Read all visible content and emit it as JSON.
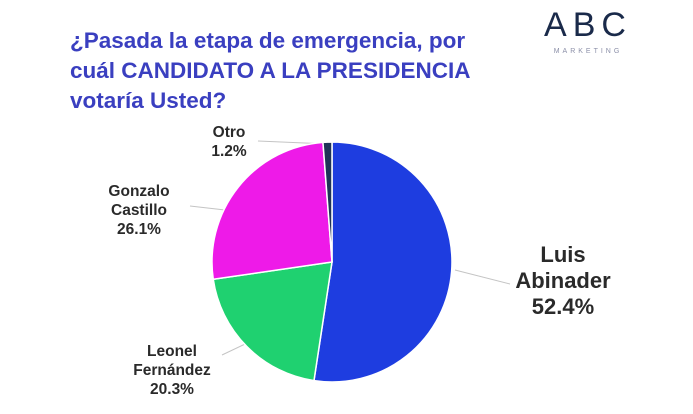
{
  "title": "¿Pasada la etapa de emergencia, por cuál CANDIDATO A LA PRESIDENCIA votaría Usted?",
  "logo": {
    "letters": "ABC",
    "sub": "MARKETING"
  },
  "chart_data": {
    "type": "pie",
    "title": "¿Pasada la etapa de emergencia, por cuál CANDIDATO A LA PRESIDENCIA votaría Usted?",
    "slices": [
      {
        "name": "Luis Abinader",
        "label_lines": [
          "Luis",
          "Abinader"
        ],
        "value": 52.4,
        "value_label": "52.4%",
        "color": "#1e3de0"
      },
      {
        "name": "Leonel Fernández",
        "label_lines": [
          "Leonel",
          "Fernández"
        ],
        "value": 20.3,
        "value_label": "20.3%",
        "color": "#1fd170"
      },
      {
        "name": "Gonzalo Castillo",
        "label_lines": [
          "Gonzalo",
          "Castillo"
        ],
        "value": 26.1,
        "value_label": "26.1%",
        "color": "#ee1ae8"
      },
      {
        "name": "Otro",
        "label_lines": [
          "Otro"
        ],
        "value": 1.2,
        "value_label": "1.2%",
        "color": "#1f3358"
      }
    ]
  }
}
